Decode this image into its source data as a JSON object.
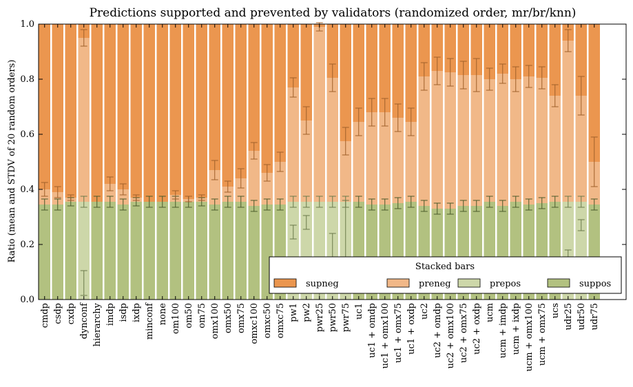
{
  "chart_data": {
    "type": "bar",
    "stacked": true,
    "title": "Predictions supported and prevented by validators (randomized order, mr/br/knn)",
    "xlabel": "",
    "ylabel": "Ratio (mean and STDV of 20 random orders)",
    "ylim": [
      0,
      1.0
    ],
    "yticks": [
      "0.0",
      "0.2",
      "0.4",
      "0.6",
      "0.8",
      "1.0"
    ],
    "grid": false,
    "categories": [
      "cmdp",
      "csdp",
      "cxdp",
      "dynconf",
      "hierarchy",
      "imdp",
      "isdp",
      "ixdp",
      "minconf",
      "none",
      "om100",
      "om50",
      "om75",
      "omx100",
      "omx50",
      "omx75",
      "omxc100",
      "omxc50",
      "omxc75",
      "pw1",
      "pw2",
      "pwr25",
      "pwr50",
      "pwr75",
      "uc1",
      "uc1 + omdp",
      "uc1 + omx100",
      "uc1 + omx75",
      "uc1 + oxdp",
      "uc2",
      "uc2 + omdp",
      "uc2 + omx100",
      "uc2 + omx75",
      "uc2 + oxdp",
      "ucm",
      "ucm + imdp",
      "ucm + ixdp",
      "ucm + omx100",
      "ucm + omx75",
      "ucs",
      "udr25",
      "udr50",
      "udr75"
    ],
    "series": [
      {
        "name": "suppos",
        "color": "#b2c180",
        "values": [
          0.345,
          0.345,
          0.355,
          0,
          0.355,
          0.355,
          0.345,
          0.355,
          0.355,
          0.355,
          0.355,
          0.355,
          0.355,
          0.345,
          0.355,
          0.355,
          0.34,
          0.345,
          0.345,
          0,
          0,
          0,
          0,
          0,
          0.355,
          0.345,
          0.345,
          0.35,
          0.355,
          0.34,
          0.33,
          0.33,
          0.34,
          0.34,
          0.355,
          0.34,
          0.355,
          0.345,
          0.35,
          0.355,
          0,
          0,
          0.345
        ],
        "err": [
          0.02,
          0.02,
          0.015,
          0,
          0.02,
          0.02,
          0.02,
          0.015,
          0.02,
          0.02,
          0.02,
          0.02,
          0.015,
          0.02,
          0.02,
          0.02,
          0.02,
          0.02,
          0.02,
          0,
          0,
          0,
          0,
          0,
          0.02,
          0.02,
          0.02,
          0.02,
          0.02,
          0.02,
          0.02,
          0.02,
          0.02,
          0.02,
          0.02,
          0.02,
          0.02,
          0.02,
          0.02,
          0.02,
          0,
          0,
          0.02
        ]
      },
      {
        "name": "prepos",
        "color": "#cdd7a9",
        "values": [
          0,
          0,
          0,
          0.355,
          0,
          0,
          0,
          0,
          0,
          0,
          0,
          0,
          0,
          0,
          0,
          0,
          0,
          0,
          0,
          0.355,
          0.355,
          0.355,
          0.355,
          0.355,
          0,
          0,
          0,
          0,
          0,
          0,
          0,
          0,
          0,
          0,
          0,
          0,
          0,
          0,
          0,
          0,
          0.355,
          0.355,
          0
        ],
        "err": [
          0,
          0,
          0,
          0.02,
          0,
          0,
          0,
          0,
          0,
          0,
          0,
          0,
          0,
          0,
          0,
          0,
          0,
          0,
          0,
          0.02,
          0.02,
          0.02,
          0.02,
          0.02,
          0,
          0,
          0,
          0,
          0,
          0,
          0,
          0,
          0,
          0,
          0,
          0,
          0,
          0,
          0,
          0,
          0.02,
          0.02,
          0
        ],
        "split": [
          null,
          null,
          null,
          0.06,
          null,
          null,
          null,
          null,
          null,
          null,
          null,
          null,
          null,
          null,
          null,
          null,
          null,
          null,
          null,
          0.245,
          0.28,
          0.02,
          0.165,
          0.24,
          null,
          null,
          null,
          null,
          null,
          null,
          null,
          null,
          null,
          null,
          null,
          null,
          null,
          null,
          null,
          null,
          0.15,
          0.27,
          null
        ],
        "split_err": [
          null,
          null,
          null,
          0.045,
          null,
          null,
          null,
          null,
          null,
          null,
          null,
          null,
          null,
          null,
          null,
          null,
          null,
          null,
          null,
          0.025,
          0.025,
          0.02,
          0.075,
          0.12,
          null,
          null,
          null,
          null,
          null,
          null,
          null,
          null,
          null,
          null,
          null,
          null,
          null,
          null,
          null,
          null,
          0.03,
          0.02,
          null
        ]
      },
      {
        "name": "preneg",
        "color": "#f1b888",
        "values": [
          0.055,
          0.045,
          0.015,
          0.595,
          0,
          0.065,
          0.055,
          0.015,
          0,
          0,
          0.025,
          0.01,
          0.015,
          0.125,
          0.055,
          0.085,
          0.2,
          0.115,
          0.155,
          0.415,
          0.295,
          0.635,
          0.45,
          0.22,
          0.29,
          0.335,
          0.335,
          0.31,
          0.29,
          0.47,
          0.5,
          0.495,
          0.475,
          0.475,
          0.445,
          0.48,
          0.445,
          0.465,
          0.455,
          0.385,
          0.585,
          0.385,
          0.155
        ],
        "err": [
          0.025,
          0.02,
          0.01,
          0.03,
          0,
          0.025,
          0.02,
          0.01,
          0,
          0,
          0.015,
          0.01,
          0.01,
          0.035,
          0.02,
          0.035,
          0.03,
          0.03,
          0.035,
          0.035,
          0.05,
          0.015,
          0.05,
          0.05,
          0.05,
          0.05,
          0.05,
          0.05,
          0.05,
          0.05,
          0.05,
          0.05,
          0.05,
          0.06,
          0.04,
          0.035,
          0.045,
          0.04,
          0.04,
          0.04,
          0.04,
          0.07,
          0.09
        ]
      },
      {
        "name": "supneg",
        "color": "#eb964f",
        "values": [
          0.6,
          0.61,
          0.63,
          0.05,
          0.645,
          0.58,
          0.6,
          0.63,
          0.645,
          0.645,
          0.62,
          0.635,
          0.63,
          0.53,
          0.59,
          0.56,
          0.46,
          0.54,
          0.5,
          0.23,
          0.35,
          0.01,
          0.195,
          0.425,
          0.355,
          0.32,
          0.32,
          0.34,
          0.355,
          0.19,
          0.17,
          0.175,
          0.185,
          0.185,
          0.2,
          0.18,
          0.2,
          0.19,
          0.195,
          0.26,
          0.06,
          0.26,
          0.5
        ],
        "err": [
          0,
          0,
          0,
          0,
          0,
          0,
          0,
          0,
          0,
          0,
          0,
          0,
          0,
          0,
          0,
          0,
          0,
          0,
          0,
          0,
          0,
          0,
          0,
          0,
          0,
          0,
          0,
          0,
          0,
          0,
          0,
          0,
          0,
          0,
          0,
          0,
          0,
          0,
          0,
          0,
          0,
          0,
          0
        ]
      }
    ],
    "legend": {
      "title": "Stacked bars",
      "placement": "lower-right",
      "ncol": 4,
      "entries": [
        "supneg",
        "preneg",
        "prepos",
        "suppos"
      ]
    }
  }
}
